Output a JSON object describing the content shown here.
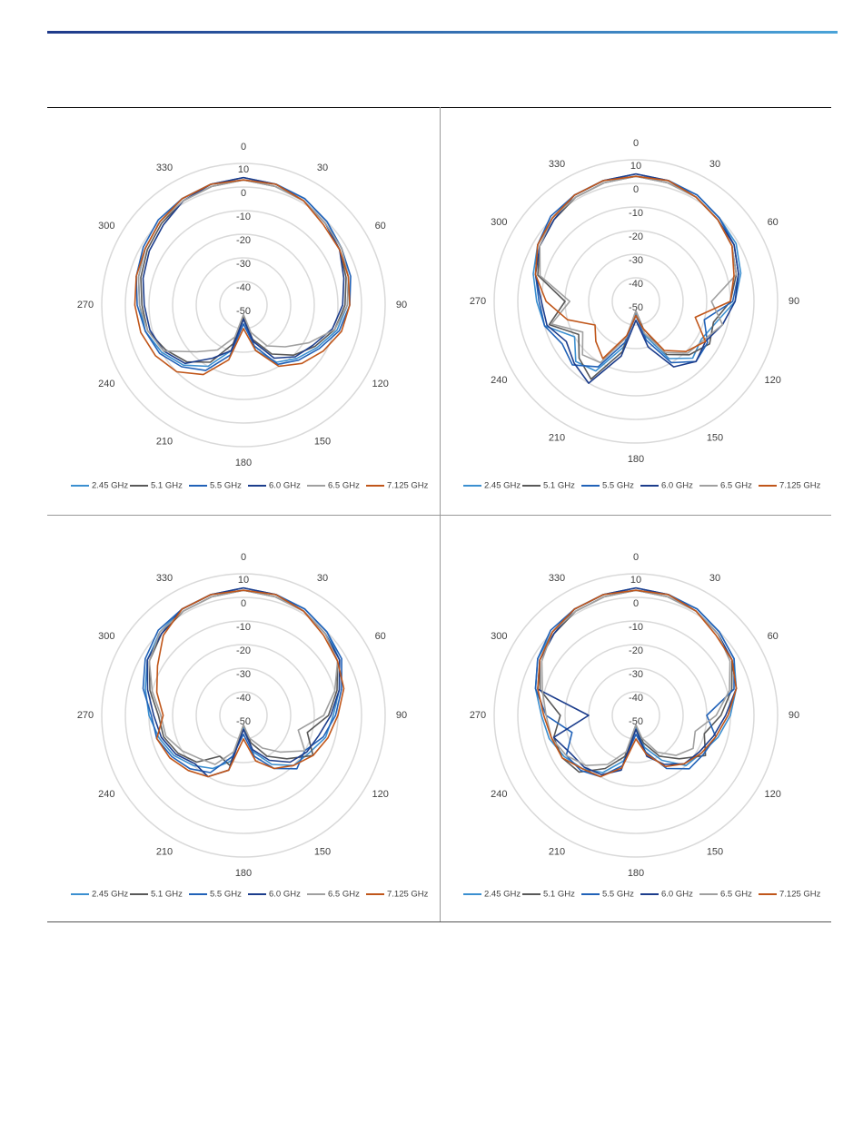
{
  "chart_data": [
    {
      "type": "polar",
      "rlim": [
        -50,
        10
      ],
      "rticks": [
        10,
        0,
        -10,
        -20,
        -30,
        -40,
        -50
      ],
      "thetaticks": [
        0,
        30,
        60,
        90,
        120,
        150,
        180,
        210,
        240,
        270,
        300,
        330
      ],
      "theta": [
        0,
        15,
        30,
        45,
        60,
        75,
        90,
        105,
        120,
        135,
        150,
        165,
        180,
        195,
        210,
        225,
        240,
        255,
        270,
        285,
        300,
        315,
        330,
        345
      ],
      "series": [
        {
          "name": "2.45 GHz",
          "color": "#3b8fd0",
          "values": [
            3,
            3,
            2,
            0,
            -2,
            -4,
            -6,
            -9,
            -14,
            -18,
            -22,
            -30,
            -44,
            -30,
            -20,
            -14,
            -10,
            -7,
            -6,
            -4,
            -2,
            0,
            2,
            3
          ]
        },
        {
          "name": "5.1 GHz",
          "color": "#595959",
          "values": [
            3,
            2,
            1,
            -1,
            -3,
            -5,
            -7,
            -10,
            -15,
            -20,
            -26,
            -35,
            -45,
            -33,
            -22,
            -16,
            -12,
            -8,
            -7,
            -5,
            -3,
            -1,
            1,
            2
          ]
        },
        {
          "name": "5.5 GHz",
          "color": "#2162b8",
          "values": [
            4,
            3,
            2,
            0,
            -2,
            -3,
            -5,
            -8,
            -13,
            -17,
            -21,
            -32,
            -42,
            -28,
            -18,
            -13,
            -9,
            -7,
            -5,
            -3,
            -1,
            1,
            2,
            3
          ]
        },
        {
          "name": "6.0 GHz",
          "color": "#1c3d8c",
          "values": [
            4,
            3,
            1,
            -1,
            -3,
            -6,
            -8,
            -11,
            -16,
            -19,
            -24,
            -34,
            -44,
            -30,
            -24,
            -15,
            -11,
            -9,
            -8,
            -6,
            -4,
            -2,
            1,
            3
          ]
        },
        {
          "name": "6.5 GHz",
          "color": "#a0a0a0",
          "values": [
            3,
            2,
            1,
            -1,
            -2,
            -4,
            -6,
            -10,
            -18,
            -25,
            -30,
            -38,
            -46,
            -36,
            -28,
            -22,
            -11,
            -8,
            -6,
            -4,
            -2,
            0,
            1,
            2
          ]
        },
        {
          "name": "7.125 GHz",
          "color": "#c0561a",
          "values": [
            3,
            3,
            1,
            -2,
            -3,
            -4,
            -5,
            -7,
            -11,
            -15,
            -20,
            -30,
            -40,
            -26,
            -16,
            -10,
            -7,
            -5,
            -4,
            -3,
            -2,
            0,
            2,
            3
          ]
        }
      ]
    },
    {
      "type": "polar",
      "rlim": [
        -50,
        10
      ],
      "rticks": [
        10,
        0,
        -10,
        -20,
        -30,
        -40,
        -50
      ],
      "thetaticks": [
        0,
        30,
        60,
        90,
        120,
        150,
        180,
        210,
        240,
        270,
        300,
        330
      ],
      "theta": [
        0,
        15,
        30,
        45,
        60,
        75,
        90,
        105,
        120,
        135,
        150,
        165,
        180,
        195,
        210,
        225,
        240,
        255,
        270,
        285,
        300,
        315,
        330,
        345
      ],
      "series": [
        {
          "name": "2.45 GHz",
          "color": "#3b8fd0",
          "values": [
            3,
            3,
            2,
            0,
            -1,
            -4,
            -8,
            -15,
            -18,
            -16,
            -22,
            -35,
            -45,
            -30,
            -16,
            -14,
            -20,
            -10,
            -8,
            -5,
            -2,
            0,
            2,
            3
          ]
        },
        {
          "name": "5.1 GHz",
          "color": "#595959",
          "values": [
            3,
            2,
            1,
            -1,
            -3,
            -6,
            -10,
            -16,
            -14,
            -18,
            -24,
            -38,
            -46,
            -28,
            -12,
            -16,
            -22,
            -12,
            -20,
            -7,
            -3,
            -1,
            1,
            2
          ]
        },
        {
          "name": "5.5 GHz",
          "color": "#2162b8",
          "values": [
            4,
            3,
            2,
            0,
            -2,
            -5,
            -9,
            -20,
            -15,
            -14,
            -20,
            -33,
            -44,
            -32,
            -18,
            -12,
            -14,
            -10,
            -9,
            -6,
            -2,
            1,
            2,
            3
          ]
        },
        {
          "name": "6.0 GHz",
          "color": "#1c3d8c",
          "values": [
            4,
            3,
            1,
            -1,
            -2,
            -5,
            -8,
            -12,
            -16,
            -14,
            -18,
            -30,
            -42,
            -26,
            -10,
            -13,
            -16,
            -11,
            -10,
            -6,
            -3,
            -1,
            2,
            3
          ]
        },
        {
          "name": "6.5 GHz",
          "color": "#a0a0a0",
          "values": [
            3,
            2,
            1,
            -1,
            -3,
            -6,
            -18,
            -12,
            -17,
            -19,
            -25,
            -36,
            -46,
            -34,
            -20,
            -18,
            -24,
            -13,
            -22,
            -8,
            -3,
            0,
            1,
            2
          ]
        },
        {
          "name": "7.125 GHz",
          "color": "#c0561a",
          "values": [
            3,
            3,
            1,
            -1,
            -3,
            -7,
            -10,
            -24,
            -16,
            -20,
            -26,
            -38,
            -44,
            -35,
            -22,
            -26,
            -30,
            -20,
            -12,
            -6,
            -2,
            0,
            2,
            3
          ]
        }
      ]
    },
    {
      "type": "polar",
      "rlim": [
        -50,
        10
      ],
      "rticks": [
        10,
        0,
        -10,
        -20,
        -30,
        -40,
        -50
      ],
      "thetaticks": [
        0,
        30,
        60,
        90,
        120,
        150,
        180,
        210,
        240,
        270,
        300,
        330
      ],
      "theta": [
        0,
        15,
        30,
        45,
        60,
        75,
        90,
        105,
        120,
        135,
        150,
        165,
        180,
        195,
        210,
        225,
        240,
        255,
        270,
        285,
        300,
        315,
        330,
        345
      ],
      "series": [
        {
          "name": "2.45 GHz",
          "color": "#3b8fd0",
          "values": [
            3,
            3,
            2,
            0,
            -3,
            -8,
            -12,
            -14,
            -18,
            -20,
            -26,
            -34,
            -45,
            -30,
            -24,
            -20,
            -16,
            -13,
            -10,
            -7,
            -3,
            0,
            2,
            3
          ]
        },
        {
          "name": "5.1 GHz",
          "color": "#595959",
          "values": [
            3,
            2,
            1,
            -1,
            -4,
            -9,
            -14,
            -22,
            -16,
            -24,
            -30,
            -38,
            -46,
            -28,
            -30,
            -22,
            -18,
            -15,
            -14,
            -9,
            -4,
            -1,
            1,
            2
          ]
        },
        {
          "name": "5.5 GHz",
          "color": "#2162b8",
          "values": [
            4,
            3,
            2,
            0,
            -2,
            -7,
            -11,
            -15,
            -20,
            -18,
            -24,
            -32,
            -42,
            -32,
            -22,
            -18,
            -15,
            -12,
            -11,
            -6,
            -2,
            1,
            2,
            3
          ]
        },
        {
          "name": "6.0 GHz",
          "color": "#1c3d8c",
          "values": [
            4,
            3,
            1,
            -1,
            -3,
            -8,
            -13,
            -17,
            -19,
            -22,
            -28,
            -35,
            -44,
            -26,
            -20,
            -21,
            -17,
            -14,
            -12,
            -8,
            -3,
            -1,
            2,
            3
          ]
        },
        {
          "name": "6.5 GHz",
          "color": "#a0a0a0",
          "values": [
            3,
            2,
            1,
            -1,
            -4,
            -10,
            -16,
            -26,
            -20,
            -28,
            -34,
            -40,
            -46,
            -34,
            -26,
            -24,
            -20,
            -16,
            -15,
            -10,
            -4,
            0,
            1,
            2
          ]
        },
        {
          "name": "7.125 GHz",
          "color": "#c0561a",
          "values": [
            3,
            3,
            1,
            -2,
            -4,
            -6,
            -10,
            -13,
            -16,
            -20,
            -24,
            -30,
            -40,
            -26,
            -20,
            -17,
            -14,
            -12,
            -16,
            -12,
            -8,
            -2,
            2,
            3
          ]
        }
      ]
    },
    {
      "type": "polar",
      "rlim": [
        -50,
        10
      ],
      "rticks": [
        10,
        0,
        -10,
        -20,
        -30,
        -40,
        -50
      ],
      "thetaticks": [
        0,
        30,
        60,
        90,
        120,
        150,
        180,
        210,
        240,
        270,
        300,
        330
      ],
      "theta": [
        0,
        15,
        30,
        45,
        60,
        75,
        90,
        105,
        120,
        135,
        150,
        165,
        180,
        195,
        210,
        225,
        240,
        255,
        270,
        285,
        300,
        315,
        330,
        345
      ],
      "series": [
        {
          "name": "2.45 GHz",
          "color": "#3b8fd0",
          "values": [
            3,
            3,
            2,
            0,
            -2,
            -6,
            -10,
            -14,
            -18,
            -20,
            -28,
            -36,
            -45,
            -30,
            -22,
            -18,
            -15,
            -12,
            -10,
            -6,
            -2,
            0,
            2,
            3
          ]
        },
        {
          "name": "5.1 GHz",
          "color": "#595959",
          "values": [
            3,
            2,
            1,
            -1,
            -3,
            -8,
            -14,
            -20,
            -16,
            -24,
            -30,
            -38,
            -46,
            -32,
            -24,
            -16,
            -14,
            -14,
            -18,
            -8,
            -3,
            -1,
            1,
            2
          ]
        },
        {
          "name": "5.5 GHz",
          "color": "#2162b8",
          "values": [
            4,
            3,
            2,
            0,
            -2,
            -7,
            -20,
            -15,
            -17,
            -18,
            -24,
            -34,
            -42,
            -28,
            -20,
            -17,
            -16,
            -22,
            -12,
            -6,
            -2,
            1,
            2,
            3
          ]
        },
        {
          "name": "6.0 GHz",
          "color": "#1c3d8c",
          "values": [
            4,
            3,
            1,
            -1,
            -3,
            -6,
            -12,
            -16,
            -19,
            -21,
            -26,
            -32,
            -44,
            -26,
            -21,
            -19,
            -18,
            -14,
            -30,
            -7,
            -3,
            -1,
            2,
            3
          ]
        },
        {
          "name": "6.5 GHz",
          "color": "#a0a0a0",
          "values": [
            3,
            2,
            1,
            -1,
            -4,
            -9,
            -16,
            -24,
            -22,
            -26,
            -32,
            -40,
            -46,
            -34,
            -26,
            -20,
            -16,
            -13,
            -12,
            -9,
            -4,
            0,
            1,
            2
          ]
        },
        {
          "name": "7.125 GHz",
          "color": "#c0561a",
          "values": [
            3,
            3,
            1,
            -2,
            -3,
            -6,
            -11,
            -15,
            -18,
            -21,
            -25,
            -33,
            -40,
            -27,
            -20,
            -18,
            -14,
            -13,
            -11,
            -7,
            -3,
            0,
            2,
            3
          ]
        }
      ]
    }
  ]
}
